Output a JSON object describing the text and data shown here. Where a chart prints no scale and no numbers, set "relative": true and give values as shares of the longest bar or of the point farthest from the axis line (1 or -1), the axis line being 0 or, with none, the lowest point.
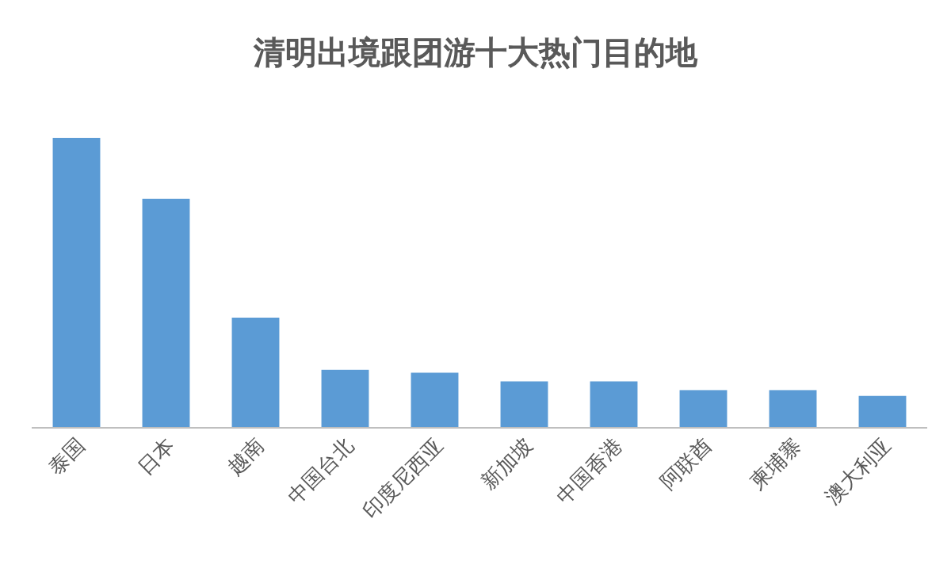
{
  "chart_data": {
    "type": "bar",
    "title": "清明出境跟团游十大热门目的地",
    "categories": [
      "泰国",
      "日本",
      "越南",
      "中国台北",
      "印度尼西亚",
      "新加坡",
      "中国香港",
      "阿联酋",
      "柬埔寨",
      "澳大利亚"
    ],
    "values": [
      1,
      0.79,
      0.38,
      0.2,
      0.19,
      0.16,
      0.16,
      0.13,
      0.13,
      0.11
    ],
    "color": "#5b9bd5",
    "relative": true
  }
}
